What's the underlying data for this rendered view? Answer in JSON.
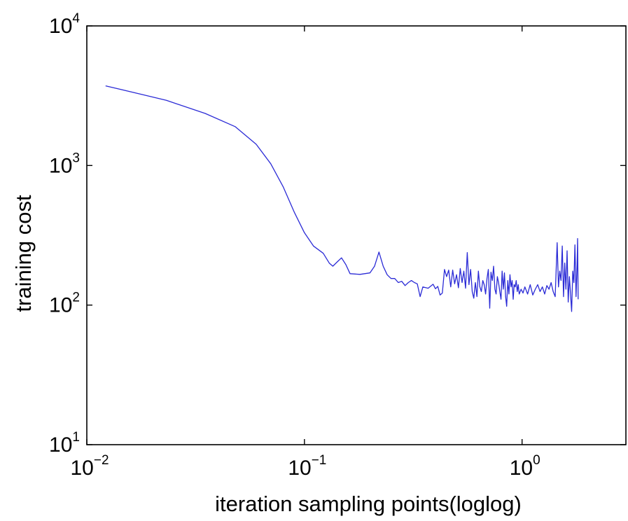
{
  "chart_data": {
    "type": "line",
    "xlabel": "iteration  sampling points(loglog)",
    "ylabel": "training cost",
    "xscale": "log",
    "yscale": "log",
    "xlim": [
      0.01,
      3.0
    ],
    "ylim": [
      10,
      10000
    ],
    "grid": false,
    "x_ticks": [
      {
        "value": 0.01,
        "base": "10",
        "exp": "−2"
      },
      {
        "value": 0.1,
        "base": "10",
        "exp": "−1"
      },
      {
        "value": 1,
        "base": "10",
        "exp": "0"
      }
    ],
    "y_ticks": [
      {
        "value": 10,
        "base": "10",
        "exp": "1"
      },
      {
        "value": 100,
        "base": "10",
        "exp": "2"
      },
      {
        "value": 1000,
        "base": "10",
        "exp": "3"
      },
      {
        "value": 10000,
        "base": "10",
        "exp": "4"
      }
    ],
    "series": [
      {
        "color": "#2b2bd6",
        "points": [
          [
            0.0122,
            3720
          ],
          [
            0.0165,
            3330
          ],
          [
            0.0232,
            2930
          ],
          [
            0.035,
            2360
          ],
          [
            0.048,
            1900
          ],
          [
            0.06,
            1420
          ],
          [
            0.07,
            1030
          ],
          [
            0.08,
            700
          ],
          [
            0.09,
            460
          ],
          [
            0.1,
            330
          ],
          [
            0.11,
            265
          ],
          [
            0.122,
            235
          ],
          [
            0.13,
            200
          ],
          [
            0.135,
            190
          ],
          [
            0.142,
            205
          ],
          [
            0.148,
            218
          ],
          [
            0.155,
            195
          ],
          [
            0.162,
            168
          ],
          [
            0.18,
            166
          ],
          [
            0.2,
            170
          ],
          [
            0.21,
            190
          ],
          [
            0.22,
            240
          ],
          [
            0.23,
            190
          ],
          [
            0.24,
            165
          ],
          [
            0.25,
            155
          ],
          [
            0.26,
            155
          ],
          [
            0.27,
            145
          ],
          [
            0.28,
            148
          ],
          [
            0.29,
            138
          ],
          [
            0.3,
            145
          ],
          [
            0.31,
            150
          ],
          [
            0.32,
            145
          ],
          [
            0.33,
            142
          ],
          [
            0.34,
            115
          ],
          [
            0.35,
            135
          ],
          [
            0.37,
            132
          ],
          [
            0.39,
            141
          ],
          [
            0.4,
            131
          ],
          [
            0.41,
            136
          ],
          [
            0.42,
            118
          ],
          [
            0.43,
            122
          ],
          [
            0.44,
            180
          ],
          [
            0.45,
            160
          ],
          [
            0.46,
            178
          ],
          [
            0.47,
            135
          ],
          [
            0.48,
            178
          ],
          [
            0.49,
            142
          ],
          [
            0.5,
            165
          ],
          [
            0.51,
            133
          ],
          [
            0.52,
            183
          ],
          [
            0.53,
            145
          ],
          [
            0.54,
            175
          ],
          [
            0.55,
            132
          ],
          [
            0.56,
            238
          ],
          [
            0.57,
            140
          ],
          [
            0.58,
            180
          ],
          [
            0.59,
            125
          ],
          [
            0.6,
            112
          ],
          [
            0.61,
            145
          ],
          [
            0.62,
            115
          ],
          [
            0.63,
            175
          ],
          [
            0.64,
            135
          ],
          [
            0.65,
            125
          ],
          [
            0.66,
            150
          ],
          [
            0.67,
            140
          ],
          [
            0.68,
            120
          ],
          [
            0.69,
            155
          ],
          [
            0.7,
            180
          ],
          [
            0.71,
            95
          ],
          [
            0.72,
            172
          ],
          [
            0.73,
            150
          ],
          [
            0.74,
            190
          ],
          [
            0.75,
            130
          ],
          [
            0.76,
            120
          ],
          [
            0.77,
            160
          ],
          [
            0.78,
            145
          ],
          [
            0.79,
            125
          ],
          [
            0.8,
            110
          ],
          [
            0.81,
            175
          ],
          [
            0.82,
            130
          ],
          [
            0.83,
            170
          ],
          [
            0.84,
            115
          ],
          [
            0.85,
            98
          ],
          [
            0.86,
            150
          ],
          [
            0.87,
            120
          ],
          [
            0.88,
            165
          ],
          [
            0.89,
            135
          ],
          [
            0.9,
            150
          ],
          [
            0.91,
            110
          ],
          [
            0.92,
            140
          ],
          [
            0.93,
            135
          ],
          [
            0.94,
            150
          ],
          [
            0.95,
            125
          ],
          [
            0.96,
            140
          ],
          [
            0.97,
            120
          ],
          [
            0.99,
            130
          ],
          [
            1.01,
            122
          ],
          [
            1.03,
            135
          ],
          [
            1.06,
            120
          ],
          [
            1.09,
            140
          ],
          [
            1.12,
            118
          ],
          [
            1.15,
            130
          ],
          [
            1.18,
            140
          ],
          [
            1.21,
            125
          ],
          [
            1.24,
            135
          ],
          [
            1.27,
            120
          ],
          [
            1.3,
            138
          ],
          [
            1.33,
            130
          ],
          [
            1.36,
            145
          ],
          [
            1.39,
            125
          ],
          [
            1.42,
            115
          ],
          [
            1.45,
            280
          ],
          [
            1.47,
            135
          ],
          [
            1.49,
            175
          ],
          [
            1.51,
            150
          ],
          [
            1.53,
            265
          ],
          [
            1.55,
            115
          ],
          [
            1.57,
            200
          ],
          [
            1.59,
            130
          ],
          [
            1.61,
            245
          ],
          [
            1.63,
            105
          ],
          [
            1.65,
            160
          ],
          [
            1.67,
            120
          ],
          [
            1.69,
            90
          ],
          [
            1.71,
            175
          ],
          [
            1.73,
            145
          ],
          [
            1.75,
            270
          ],
          [
            1.77,
            115
          ],
          [
            1.79,
            195
          ],
          [
            1.8,
            300
          ],
          [
            1.81,
            110
          ]
        ]
      }
    ]
  }
}
